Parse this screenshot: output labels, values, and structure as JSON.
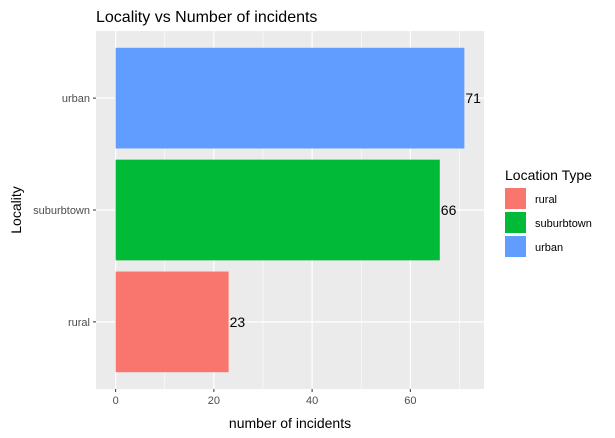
{
  "chart_data": {
    "type": "bar",
    "orientation": "horizontal",
    "title": "Locality vs Number of incidents",
    "xlabel": "number of incidents",
    "ylabel": "Locality",
    "categories": [
      "rural",
      "suburbtown",
      "urban"
    ],
    "values": [
      23,
      66,
      71
    ],
    "data_labels": [
      "23",
      "66",
      "71"
    ],
    "colors": [
      "#F8766D",
      "#00BA38",
      "#619CFF"
    ],
    "xlim": [
      -4,
      75
    ],
    "xticks": [
      0,
      20,
      40,
      60
    ],
    "xtick_labels": [
      "0",
      "20",
      "40",
      "60"
    ],
    "grid": true,
    "panel_background": "#EBEBEB",
    "legend": {
      "title": "Location Type",
      "position": "right",
      "entries": [
        "rural",
        "suburbtown",
        "urban"
      ]
    }
  }
}
